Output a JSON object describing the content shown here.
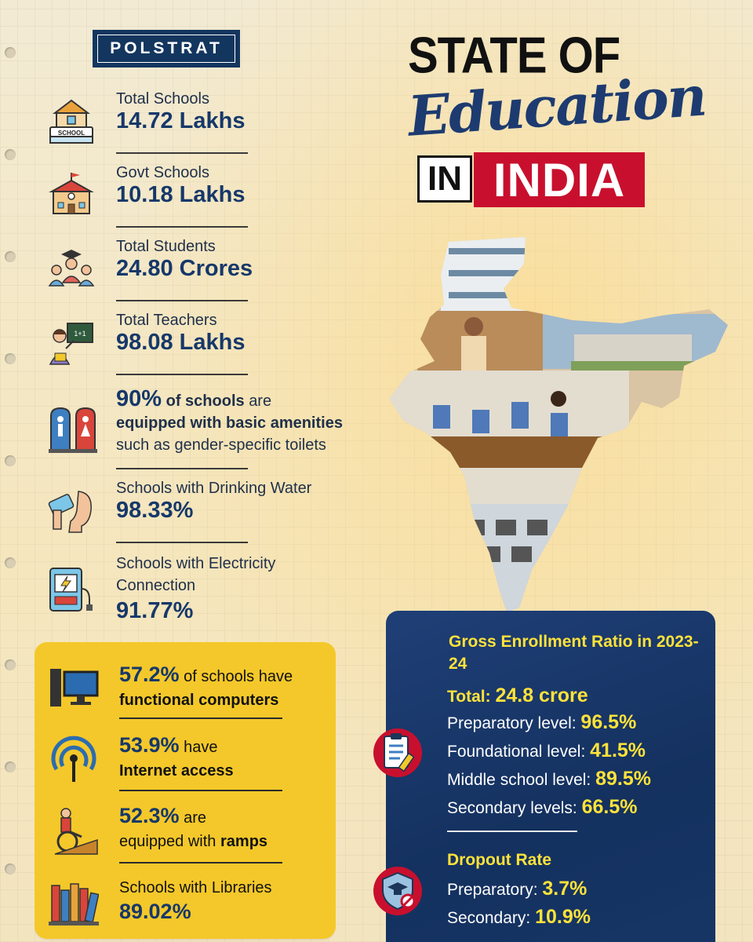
{
  "logo": {
    "text": "POLSTRAT"
  },
  "title": {
    "line1": "STATE OF",
    "script": "Education",
    "in": "IN",
    "india": "INDIA"
  },
  "stats": [
    {
      "label": "Total Schools",
      "value": "14.72 Lakhs",
      "icon": "school-icon"
    },
    {
      "label": "Govt Schools",
      "value": "10.18 Lakhs",
      "icon": "govt-school-icon"
    },
    {
      "label": "Total Students",
      "value": "24.80 Crores",
      "icon": "students-icon"
    },
    {
      "label": "Total Teachers",
      "value": "98.08 Lakhs",
      "icon": "teacher-icon"
    }
  ],
  "amenities": {
    "percent": "90%",
    "bold1": "of schools",
    "text1": "are",
    "bold2": "equipped with basic amenities",
    "text2": "such as gender-specific toilets",
    "icon": "toilet-icon"
  },
  "water": {
    "label": "Schools with Drinking Water",
    "value": "98.33%",
    "icon": "drinking-water-icon"
  },
  "electricity": {
    "label1": "Schools with Electricity",
    "label2": "Connection",
    "value": "91.77%",
    "icon": "electricity-icon"
  },
  "yellow_card": {
    "computers": {
      "value": "57.2%",
      "text": "of schools have",
      "bold": "functional computers",
      "icon": "computer-icon"
    },
    "internet": {
      "value": "53.9%",
      "text": "have",
      "bold": "Internet access",
      "icon": "wifi-icon"
    },
    "ramps": {
      "value": "52.3%",
      "text": "are",
      "text2": "equipped with",
      "bold": "ramps",
      "icon": "wheelchair-icon"
    },
    "libraries": {
      "label": "Schools with Libraries",
      "value": "89.02%",
      "icon": "books-icon"
    }
  },
  "blue_card": {
    "ger_title": "Gross Enrollment Ratio in 2023-24",
    "total_label": "Total:",
    "total_value": "24.8 crore",
    "levels": [
      {
        "label": "Preparatory level:",
        "value": "96.5%"
      },
      {
        "label": "Foundational level:",
        "value": "41.5%"
      },
      {
        "label": "Middle school level:",
        "value": "89.5%"
      },
      {
        "label": "Secondary levels:",
        "value": "66.5%"
      }
    ],
    "dropout_title": "Dropout Rate",
    "dropout": [
      {
        "label": "Preparatory:",
        "value": "3.7%"
      },
      {
        "label": "Secondary:",
        "value": "10.9%"
      }
    ],
    "icons": [
      "checklist-icon",
      "shield-graduation-icon"
    ]
  },
  "colors": {
    "navy": "#16386a",
    "red": "#c8102e",
    "yellow": "#f4c82a",
    "blue_card": "#1a3a6e",
    "accent_yellow": "#ffe23a"
  }
}
